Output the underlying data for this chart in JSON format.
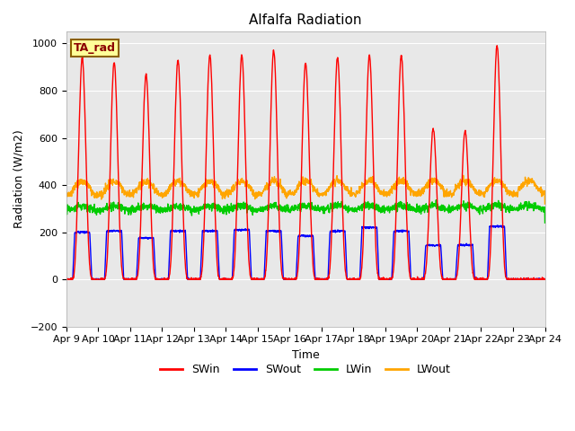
{
  "title": "Alfalfa Radiation",
  "ylabel": "Radiation (W/m2)",
  "xlabel": "Time",
  "ylim": [
    -200,
    1050
  ],
  "yticks": [
    -200,
    0,
    200,
    400,
    600,
    800,
    1000
  ],
  "legend_label": "TA_rad",
  "line_colors": {
    "SWin": "#ff0000",
    "SWout": "#0000ff",
    "LWin": "#00cc00",
    "LWout": "#ffa500"
  },
  "bg_color": "#e8e8e8",
  "fig_bg_color": "#ffffff",
  "days": 15,
  "start_day": 9,
  "samples_per_day": 144,
  "SWin_peaks": [
    940,
    920,
    870,
    930,
    950,
    950,
    970,
    920,
    940,
    950,
    950,
    640,
    630,
    990,
    0
  ],
  "SWout_peaks": [
    200,
    205,
    175,
    205,
    205,
    210,
    205,
    185,
    205,
    220,
    205,
    145,
    145,
    225,
    0
  ],
  "legend_handles": [
    "SWin",
    "SWout",
    "LWin",
    "LWout"
  ]
}
